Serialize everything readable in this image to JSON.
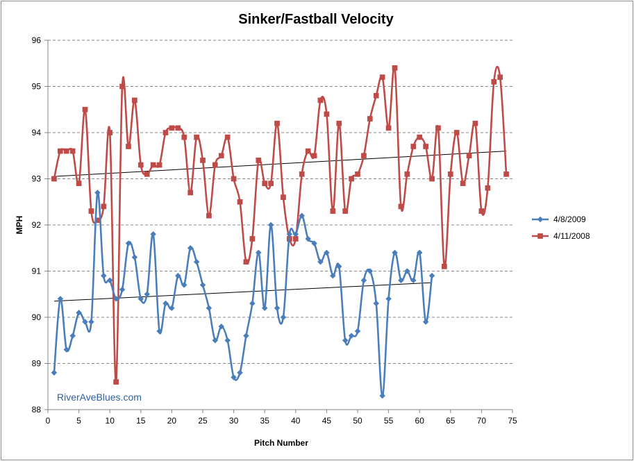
{
  "chart_data": {
    "type": "line",
    "title": "Sinker/Fastball Velocity",
    "xlabel": "Pitch Number",
    "ylabel": "MPH",
    "xlim": [
      0,
      75
    ],
    "ylim": [
      88,
      96
    ],
    "xticks": [
      0,
      5,
      10,
      15,
      20,
      25,
      30,
      35,
      40,
      45,
      50,
      55,
      60,
      65,
      70,
      75
    ],
    "yticks": [
      88,
      89,
      90,
      91,
      92,
      93,
      94,
      95,
      96
    ],
    "grid": "horizontal dashed",
    "legend_position": "right",
    "watermark": "RiverAveBlues.com",
    "series": [
      {
        "name": "4/8/2009",
        "color": "#4a7ebb",
        "marker": "diamond",
        "x": [
          1,
          2,
          3,
          4,
          5,
          6,
          7,
          8,
          9,
          10,
          11,
          12,
          13,
          14,
          15,
          16,
          17,
          18,
          19,
          20,
          21,
          22,
          23,
          24,
          25,
          26,
          27,
          28,
          29,
          30,
          31,
          32,
          33,
          34,
          35,
          36,
          37,
          38,
          39,
          40,
          41,
          42,
          43,
          44,
          45,
          46,
          47,
          48,
          49,
          50,
          51,
          52,
          53,
          54,
          55,
          56,
          57,
          58,
          59,
          60,
          61,
          62
        ],
        "values": [
          88.8,
          90.4,
          89.3,
          89.6,
          90.1,
          89.9,
          89.9,
          92.7,
          90.9,
          90.8,
          90.4,
          90.6,
          91.6,
          91.3,
          90.4,
          90.5,
          91.8,
          89.7,
          90.3,
          90.2,
          90.9,
          90.7,
          91.5,
          91.2,
          90.7,
          90.2,
          89.5,
          89.8,
          89.5,
          88.7,
          88.8,
          89.6,
          90.3,
          91.4,
          90.2,
          92.0,
          90.2,
          90.0,
          91.8,
          91.8,
          92.2,
          91.7,
          91.6,
          91.2,
          91.4,
          90.9,
          91.1,
          89.5,
          89.6,
          89.7,
          90.8,
          91.0,
          90.3,
          88.3,
          90.4,
          91.4,
          90.8,
          91.0,
          90.8,
          91.4,
          89.9,
          90.9
        ]
      },
      {
        "name": "4/11/2008",
        "color": "#be4b48",
        "marker": "square",
        "x": [
          1,
          2,
          3,
          4,
          5,
          6,
          7,
          8,
          9,
          10,
          11,
          12,
          13,
          14,
          15,
          16,
          17,
          18,
          19,
          20,
          21,
          22,
          23,
          24,
          25,
          26,
          27,
          28,
          29,
          30,
          31,
          32,
          33,
          34,
          35,
          36,
          37,
          38,
          39,
          40,
          41,
          42,
          43,
          44,
          45,
          46,
          47,
          48,
          49,
          50,
          51,
          52,
          53,
          54,
          55,
          56,
          57,
          58,
          59,
          60,
          61,
          62,
          63,
          64,
          65,
          66,
          67,
          68,
          69,
          70,
          71,
          72,
          73,
          74
        ],
        "values": [
          93.0,
          93.6,
          93.6,
          93.6,
          92.9,
          94.5,
          92.3,
          92.1,
          92.4,
          94.0,
          88.6,
          95.0,
          93.7,
          94.7,
          93.3,
          93.1,
          93.3,
          93.3,
          94.0,
          94.1,
          94.1,
          93.9,
          92.7,
          93.9,
          93.4,
          92.2,
          93.3,
          93.5,
          93.9,
          93.0,
          92.5,
          91.2,
          91.7,
          93.4,
          92.9,
          92.9,
          94.2,
          92.6,
          91.7,
          91.7,
          93.1,
          93.6,
          93.5,
          94.7,
          94.4,
          92.3,
          94.2,
          92.3,
          93.0,
          93.1,
          93.5,
          94.3,
          94.8,
          95.2,
          94.1,
          95.4,
          92.4,
          93.1,
          93.7,
          93.9,
          93.7,
          93.0,
          94.1,
          91.1,
          93.1,
          94.0,
          92.9,
          93.5,
          94.2,
          92.3,
          92.8,
          95.1,
          95.2,
          93.1
        ]
      }
    ],
    "trendlines": [
      {
        "series": "4/8/2009",
        "color": "#000000",
        "x": [
          1,
          62
        ],
        "values": [
          90.35,
          90.75
        ]
      },
      {
        "series": "4/11/2008",
        "color": "#000000",
        "x": [
          1,
          74
        ],
        "values": [
          93.05,
          93.6
        ]
      }
    ]
  }
}
